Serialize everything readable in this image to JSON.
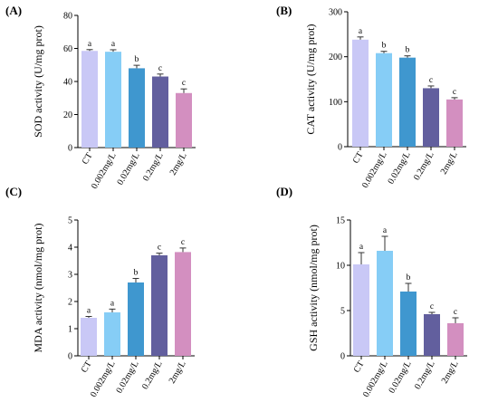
{
  "chart_data": [
    {
      "panel": "(A)",
      "type": "bar",
      "ylabel": "SOD activity (U/mg prot)",
      "ylim": [
        0,
        80
      ],
      "yticks": [
        0,
        20,
        40,
        60,
        80
      ],
      "categories": [
        "CT",
        "0.002mg/L",
        "0.02mg/L",
        "0.2mg/L",
        "2mg/L"
      ],
      "values": [
        58.5,
        58.0,
        48.0,
        43.0,
        33.0
      ],
      "errors": [
        0.8,
        1.2,
        1.8,
        1.5,
        2.5
      ],
      "significance": [
        "a",
        "a",
        "b",
        "c",
        "c"
      ],
      "colors": [
        "#c9c8f6",
        "#86cdf6",
        "#3f97cf",
        "#625f9e",
        "#d38fc0"
      ],
      "grid": false
    },
    {
      "panel": "(B)",
      "type": "bar",
      "ylabel": "CAT activity (U/mg prot)",
      "ylim": [
        0,
        300
      ],
      "yticks": [
        0,
        100,
        200,
        300
      ],
      "categories": [
        "CT",
        "0.002mg/L",
        "0.02mg/L",
        "0.2mg/L",
        "2mg/L"
      ],
      "values": [
        238,
        208,
        198,
        130,
        105
      ],
      "errors": [
        6,
        4,
        4,
        5,
        4
      ],
      "significance": [
        "a",
        "b",
        "b",
        "c",
        "c"
      ],
      "colors": [
        "#c9c8f6",
        "#86cdf6",
        "#3f97cf",
        "#625f9e",
        "#d38fc0"
      ],
      "grid": false
    },
    {
      "panel": "(C)",
      "type": "bar",
      "ylabel": "MDA activity (nmol/mg prot)",
      "ylim": [
        0,
        5
      ],
      "yticks": [
        0,
        1,
        2,
        3,
        4,
        5
      ],
      "categories": [
        "CT",
        "0.002mg/L",
        "0.02mg/L",
        "0.2mg/L",
        "2mg/L"
      ],
      "values": [
        1.4,
        1.6,
        2.7,
        3.7,
        3.82
      ],
      "errors": [
        0.05,
        0.12,
        0.15,
        0.08,
        0.15
      ],
      "significance": [
        "a",
        "a",
        "b",
        "c",
        "c"
      ],
      "colors": [
        "#c9c8f6",
        "#86cdf6",
        "#3f97cf",
        "#625f9e",
        "#d38fc0"
      ],
      "grid": false
    },
    {
      "panel": "(D)",
      "type": "bar",
      "ylabel": "GSH activity (nmol/mg prot)",
      "ylim": [
        0,
        15
      ],
      "yticks": [
        0,
        5,
        10,
        15
      ],
      "categories": [
        "CT",
        "0.002mg/L",
        "0.02mg/L",
        "0.2mg/L",
        "2mg/L"
      ],
      "values": [
        10.1,
        11.6,
        7.1,
        4.6,
        3.6
      ],
      "errors": [
        1.3,
        1.6,
        0.9,
        0.2,
        0.6
      ],
      "significance": [
        "a",
        "a",
        "b",
        "c",
        "c"
      ],
      "colors": [
        "#c9c8f6",
        "#86cdf6",
        "#3f97cf",
        "#625f9e",
        "#d38fc0"
      ],
      "grid": false
    }
  ]
}
